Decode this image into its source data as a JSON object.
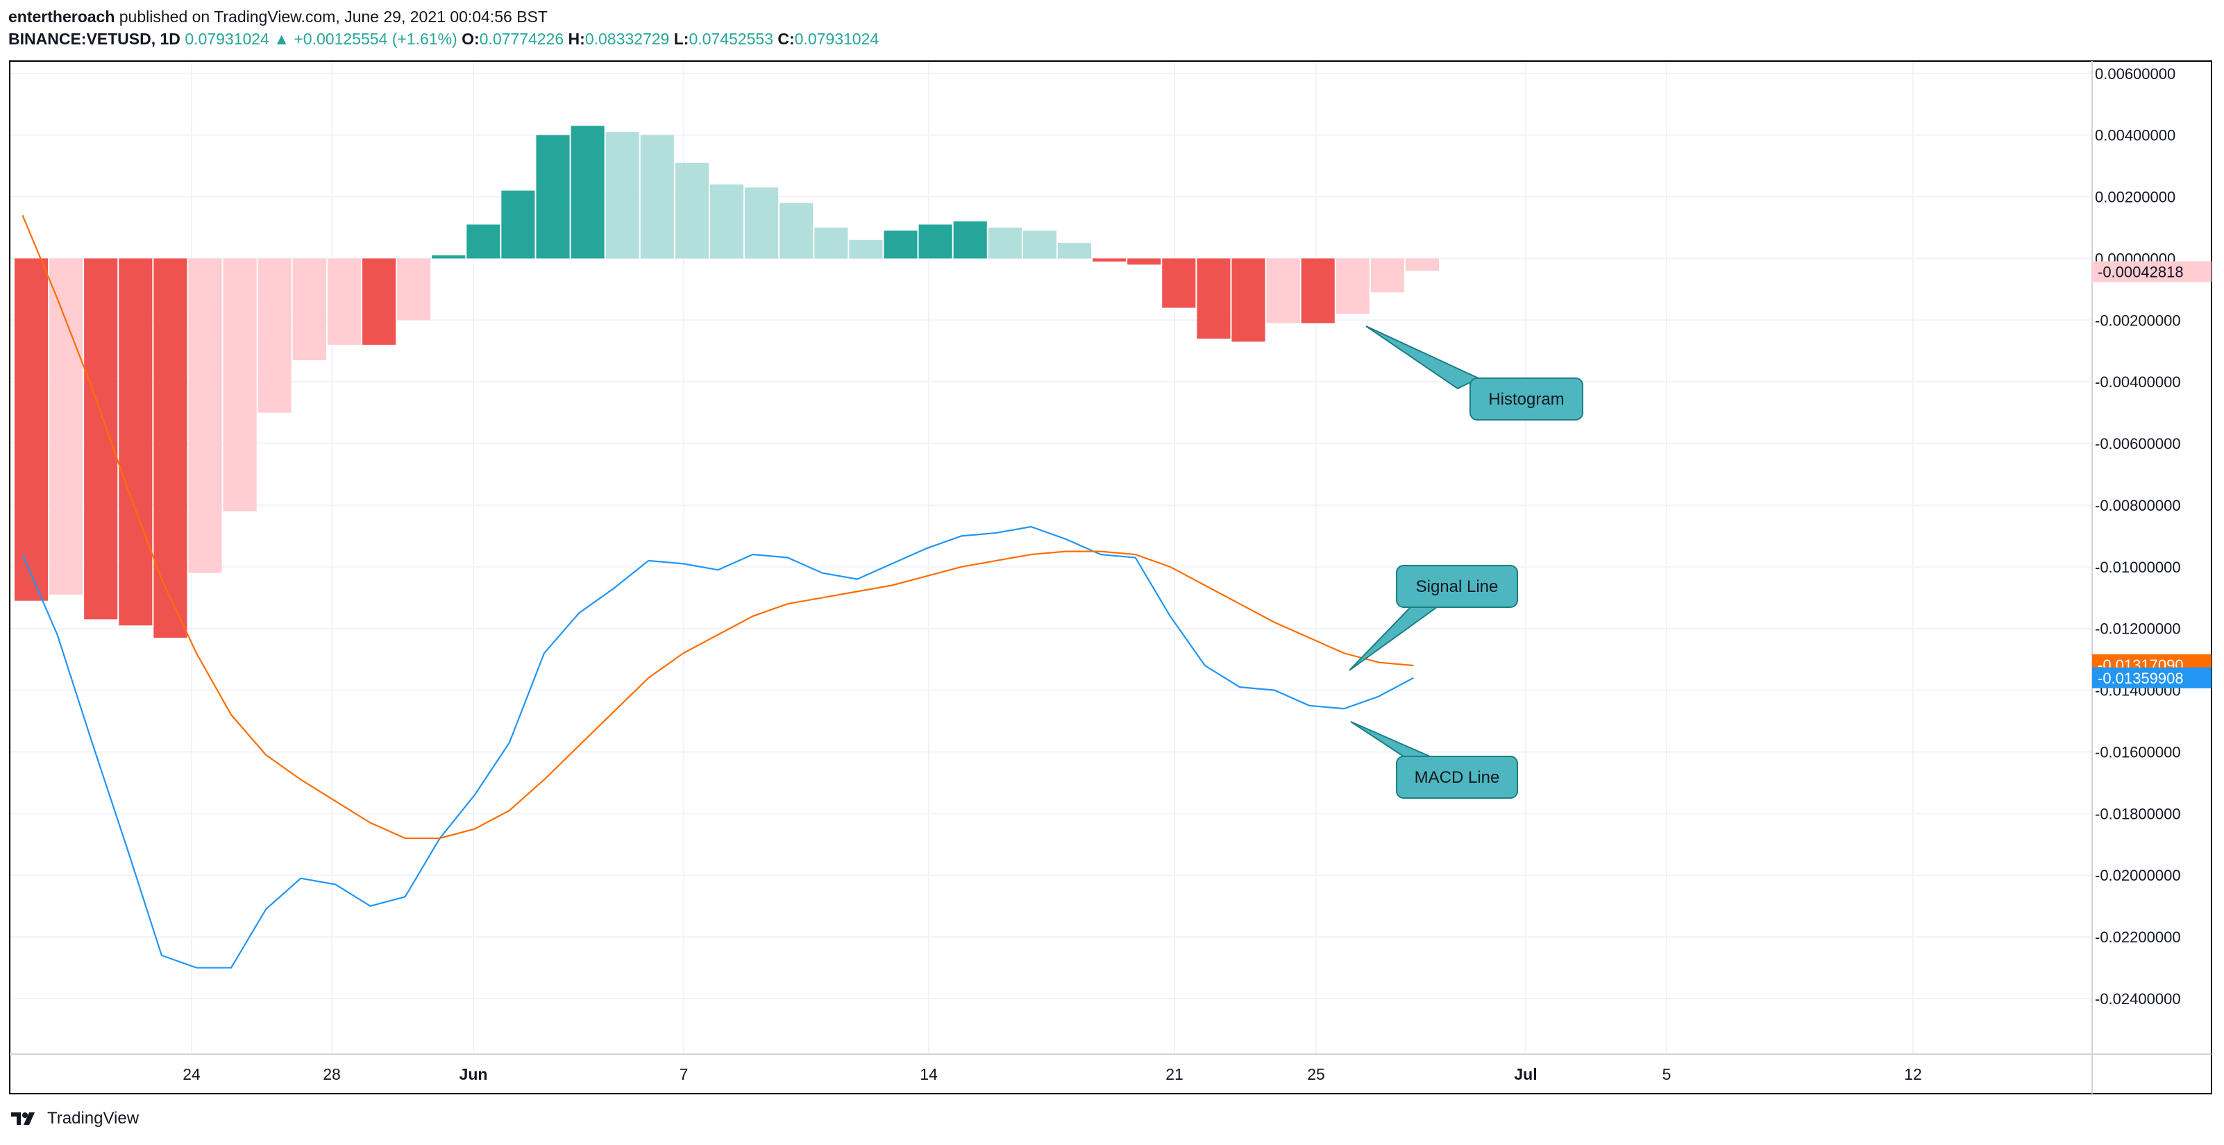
{
  "header": {
    "author": "entertheroach",
    "published": "published on TradingView.com, June 29, 2021 00:04:56 BST",
    "symbol": "BINANCE:VETUSD, 1D",
    "price": "0.07931024",
    "change": "+0.00125554 (+1.61%)",
    "o_label": "O:",
    "o_value": "0.07774226",
    "h_label": "H:",
    "h_value": "0.08332729",
    "l_label": "L:",
    "l_value": "0.07452553",
    "c_label": "C:",
    "c_value": "0.07931024",
    "up_arrow": "▲"
  },
  "footer": {
    "brand": "TradingView",
    "logo_icon": "tradingview-logo-icon"
  },
  "colors": {
    "hist_strong_pos": "#26a69a",
    "hist_weak_pos": "#b2dfdb",
    "hist_strong_neg": "#ef5350",
    "hist_weak_neg": "#ffcdd2",
    "macd": "#2196f3",
    "signal": "#ff6d00",
    "callout": "#4db6be",
    "callout_border": "#1b7f88"
  },
  "chart_data": {
    "type": "bar",
    "ylim": [
      -0.0258,
      0.0064
    ],
    "grid": true,
    "x_ticks": [
      "24",
      "28",
      "Jun",
      "7",
      "14",
      "21",
      "25",
      "Jul",
      "5",
      "12"
    ],
    "y_ticks": [
      "0.00600000",
      "0.00400000",
      "0.00200000",
      "0.00000000",
      "-0.00200000",
      "-0.00400000",
      "-0.00600000",
      "-0.00800000",
      "-0.01000000",
      "-0.01200000",
      "-0.01400000",
      "-0.01600000",
      "-0.01800000",
      "-0.02000000",
      "-0.02200000",
      "-0.02400000"
    ],
    "price_labels": [
      {
        "text": "-0.00042818",
        "value": -0.00042818,
        "series": "histogram"
      },
      {
        "text": "-0.01317090",
        "value": -0.0131709,
        "series": "signal"
      },
      {
        "text": "-0.01359908",
        "value": -0.01359908,
        "series": "macd"
      }
    ],
    "series": [
      {
        "name": "Histogram",
        "kind": "histogram",
        "values": [
          -0.0111,
          -0.0109,
          -0.0117,
          -0.0119,
          -0.0123,
          -0.0102,
          -0.0082,
          -0.005,
          -0.0033,
          -0.0028,
          -0.0028,
          -0.002,
          0.0001,
          0.0011,
          0.0022,
          0.004,
          0.0043,
          0.0041,
          0.004,
          0.0031,
          0.0024,
          0.0023,
          0.0018,
          0.001,
          0.0006,
          0.0009,
          0.0011,
          0.0012,
          0.001,
          0.0009,
          0.0005,
          -0.0001,
          -0.0002,
          -0.0016,
          -0.0026,
          -0.0027,
          -0.0021,
          -0.0021,
          -0.0018,
          -0.0011,
          -0.0004
        ]
      },
      {
        "name": "MACD Line",
        "kind": "line",
        "values": [
          -0.0096,
          -0.0122,
          -0.0157,
          -0.0191,
          -0.0226,
          -0.023,
          -0.023,
          -0.0211,
          -0.0201,
          -0.0203,
          -0.021,
          -0.0207,
          -0.0188,
          -0.0174,
          -0.0157,
          -0.0128,
          -0.0115,
          -0.0107,
          -0.0098,
          -0.0099,
          -0.0101,
          -0.0096,
          -0.0097,
          -0.0102,
          -0.0104,
          -0.0099,
          -0.0094,
          -0.009,
          -0.0089,
          -0.0087,
          -0.0091,
          -0.0096,
          -0.0097,
          -0.0116,
          -0.0132,
          -0.0139,
          -0.014,
          -0.0145,
          -0.0146,
          -0.0142,
          -0.0136
        ]
      },
      {
        "name": "Signal Line",
        "kind": "line",
        "values": [
          0.0014,
          -0.0013,
          -0.0042,
          -0.0074,
          -0.0104,
          -0.0128,
          -0.0148,
          -0.0161,
          -0.0169,
          -0.0176,
          -0.0183,
          -0.0188,
          -0.0188,
          -0.0185,
          -0.0179,
          -0.0169,
          -0.0158,
          -0.0147,
          -0.0136,
          -0.0128,
          -0.0122,
          -0.0116,
          -0.0112,
          -0.011,
          -0.0108,
          -0.0106,
          -0.0103,
          -0.01,
          -0.0098,
          -0.0096,
          -0.0095,
          -0.0095,
          -0.0096,
          -0.01,
          -0.0106,
          -0.0112,
          -0.0118,
          -0.0123,
          -0.0128,
          -0.0131,
          -0.0132
        ]
      }
    ],
    "annotations": [
      {
        "text": "Histogram",
        "target": "histogram"
      },
      {
        "text": "Signal Line",
        "target": "signal"
      },
      {
        "text": "MACD Line",
        "target": "macd"
      }
    ]
  }
}
